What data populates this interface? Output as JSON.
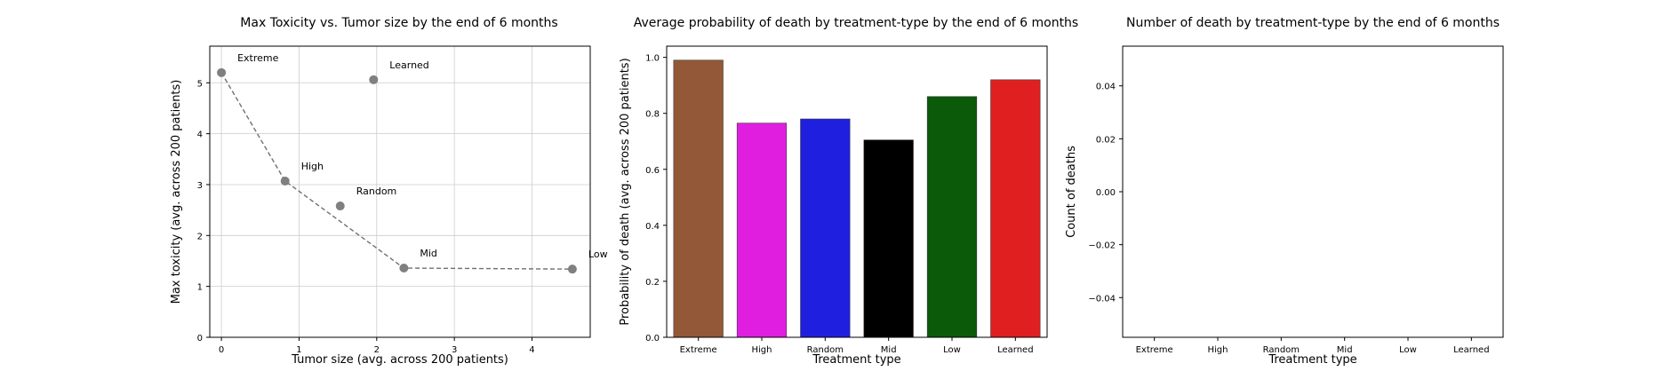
{
  "chart_data": [
    {
      "type": "scatter",
      "title": "Max Toxicity vs. Tumor size by the end of 6 months",
      "xlabel": "Tumor size (avg. across 200 patients)",
      "ylabel": "Max toxicity (avg. across 200 patients)",
      "xlim": [
        -0.15,
        4.75
      ],
      "ylim": [
        0,
        5.72
      ],
      "xticks": [
        "0",
        "1",
        "2",
        "3",
        "4"
      ],
      "yticks": [
        "0",
        "1",
        "2",
        "3",
        "4",
        "5"
      ],
      "grid": true,
      "points": [
        {
          "label": "Extreme",
          "x": 0.0,
          "y": 5.2
        },
        {
          "label": "High",
          "x": 0.82,
          "y": 3.07
        },
        {
          "label": "Random",
          "x": 1.53,
          "y": 2.58
        },
        {
          "label": "Learned",
          "x": 1.96,
          "y": 5.06
        },
        {
          "label": "Mid",
          "x": 2.35,
          "y": 1.36
        },
        {
          "label": "Low",
          "x": 4.52,
          "y": 1.34
        }
      ],
      "frontier": [
        "Extreme",
        "High",
        "Mid",
        "Low"
      ],
      "colors": {
        "point": "#808080",
        "line": "#707070"
      }
    },
    {
      "type": "bar",
      "title": "Average probability of death by treatment-type by the end of 6 months",
      "xlabel": "Treatment type",
      "ylabel": "Probability of death (avg. across 200 patients)",
      "categories": [
        "Extreme",
        "High",
        "Random",
        "Mid",
        "Low",
        "Learned"
      ],
      "values": [
        0.99,
        0.765,
        0.78,
        0.705,
        0.86,
        0.92
      ],
      "colors": [
        "#935838",
        "#e01ee0",
        "#1f1fe0",
        "#000000",
        "#0a5a0a",
        "#e02020"
      ],
      "ylim": [
        0,
        1.04
      ],
      "yticks": [
        "0.0",
        "0.2",
        "0.4",
        "0.6",
        "0.8",
        "1.0"
      ],
      "grid": false
    },
    {
      "type": "bar",
      "title": "Number of death by treatment-type by the end of 6 months",
      "xlabel": "Treatment type",
      "ylabel": "Count of deaths",
      "categories": [
        "Extreme",
        "High",
        "Random",
        "Mid",
        "Low",
        "Learned"
      ],
      "values": [
        0,
        0,
        0,
        0,
        0,
        0
      ],
      "ylim": [
        -0.055,
        0.055
      ],
      "yticks": [
        "0.04",
        "0.02",
        "0.00",
        "−0.02",
        "−0.04"
      ],
      "ytick_values": [
        0.04,
        0.02,
        0.0,
        -0.02,
        -0.04
      ],
      "grid": false
    }
  ]
}
